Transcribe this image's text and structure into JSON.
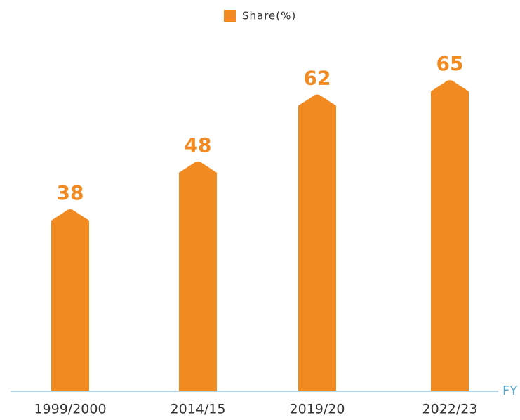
{
  "chart_data": {
    "type": "bar",
    "x_label": "FY",
    "categories": [
      "1999/2000",
      "2014/15",
      "2019/20",
      "2022/23"
    ],
    "series": [
      {
        "name": "Share(%)",
        "color": "#f28a22",
        "values": [
          38,
          48,
          62,
          65
        ]
      }
    ],
    "ylim": [
      0,
      70
    ]
  }
}
